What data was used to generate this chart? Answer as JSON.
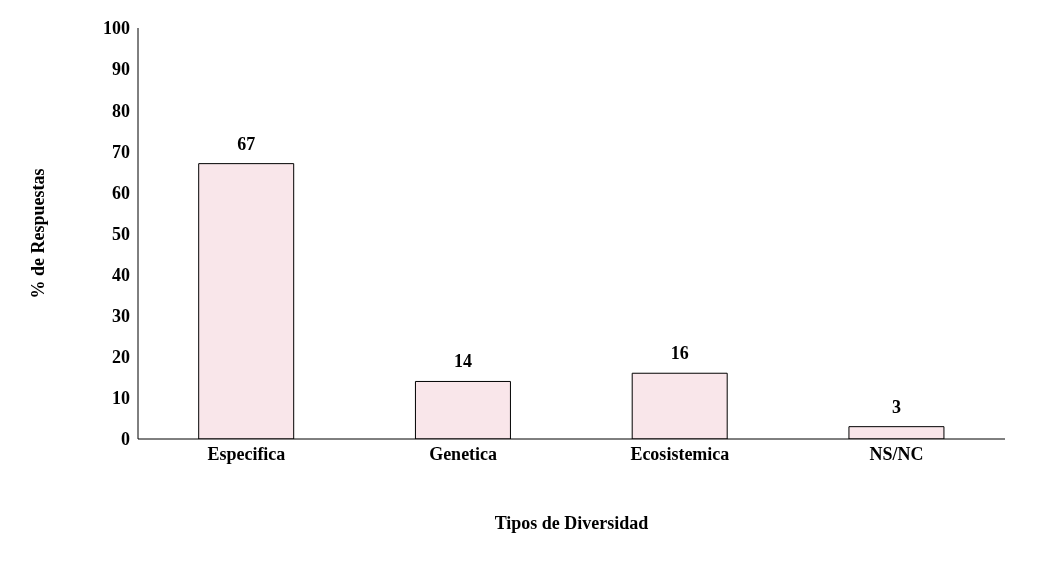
{
  "chart_data": {
    "type": "bar",
    "xlabel": "Tipos de Diversidad",
    "ylabel": "%  de Respuestas",
    "categories": [
      "Especifica",
      "Genetica",
      "Ecosistemica",
      "NS/NC"
    ],
    "values": [
      67,
      14,
      16,
      3
    ],
    "color": "#f9e6ea",
    "ylim": [
      0,
      100
    ],
    "yticks": [
      0,
      10,
      20,
      30,
      40,
      50,
      60,
      70,
      80,
      90,
      100
    ],
    "grid": false,
    "data_labels": true
  }
}
